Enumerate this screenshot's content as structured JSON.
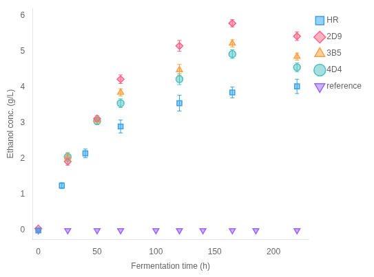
{
  "chart_data": {
    "type": "scatter",
    "xlabel": "Fermentation time (h)",
    "ylabel": "Ethanol conc. (g/L)",
    "xlim": [
      -5,
      230
    ],
    "ylim": [
      -0.25,
      6.2
    ],
    "xticks": [
      0,
      50,
      100,
      150,
      200
    ],
    "yticks": [
      0,
      1,
      2,
      3,
      4,
      5,
      6
    ],
    "grid": false,
    "legend": "right",
    "series": [
      {
        "name": "HR",
        "marker": "square",
        "x": [
          0,
          20,
          40,
          70,
          120,
          165,
          220
        ],
        "values": [
          0.0,
          1.25,
          2.15,
          2.9,
          3.55,
          3.85,
          4.02
        ],
        "yerr": [
          0.0,
          0.08,
          0.12,
          0.18,
          0.22,
          0.15,
          0.2
        ]
      },
      {
        "name": "2D9",
        "marker": "diamond",
        "x": [
          0,
          25,
          50,
          70,
          120,
          165,
          220
        ],
        "values": [
          0.05,
          1.92,
          3.12,
          4.22,
          5.15,
          5.78,
          5.42
        ],
        "yerr": [
          0.0,
          0.1,
          0.08,
          0.12,
          0.15,
          0.1,
          0.12
        ]
      },
      {
        "name": "3B5",
        "marker": "triangle-up",
        "x": [
          25,
          50,
          70,
          120,
          165,
          220
        ],
        "values": [
          2.05,
          3.08,
          3.85,
          4.48,
          5.22,
          4.85
        ],
        "yerr": [
          0.1,
          0.1,
          0.1,
          0.15,
          0.1,
          0.1
        ]
      },
      {
        "name": "4D4",
        "marker": "circle",
        "x": [
          25,
          50,
          70,
          120,
          165,
          220
        ],
        "values": [
          2.05,
          3.05,
          3.55,
          4.22,
          4.92,
          4.55
        ],
        "yerr": [
          0.12,
          0.1,
          0.12,
          0.15,
          0.12,
          0.12
        ]
      },
      {
        "name": "reference",
        "marker": "triangle-down",
        "x": [
          0,
          25,
          50,
          70,
          100,
          120,
          140,
          165,
          185,
          220
        ],
        "values": [
          0.0,
          0.0,
          0.0,
          0.0,
          0.0,
          0.0,
          0.0,
          0.0,
          0.0,
          0.0
        ],
        "yerr": [
          0.0,
          0.0,
          0.0,
          0.0,
          0.0,
          0.0,
          0.0,
          0.0,
          0.0,
          0.0
        ]
      }
    ]
  }
}
